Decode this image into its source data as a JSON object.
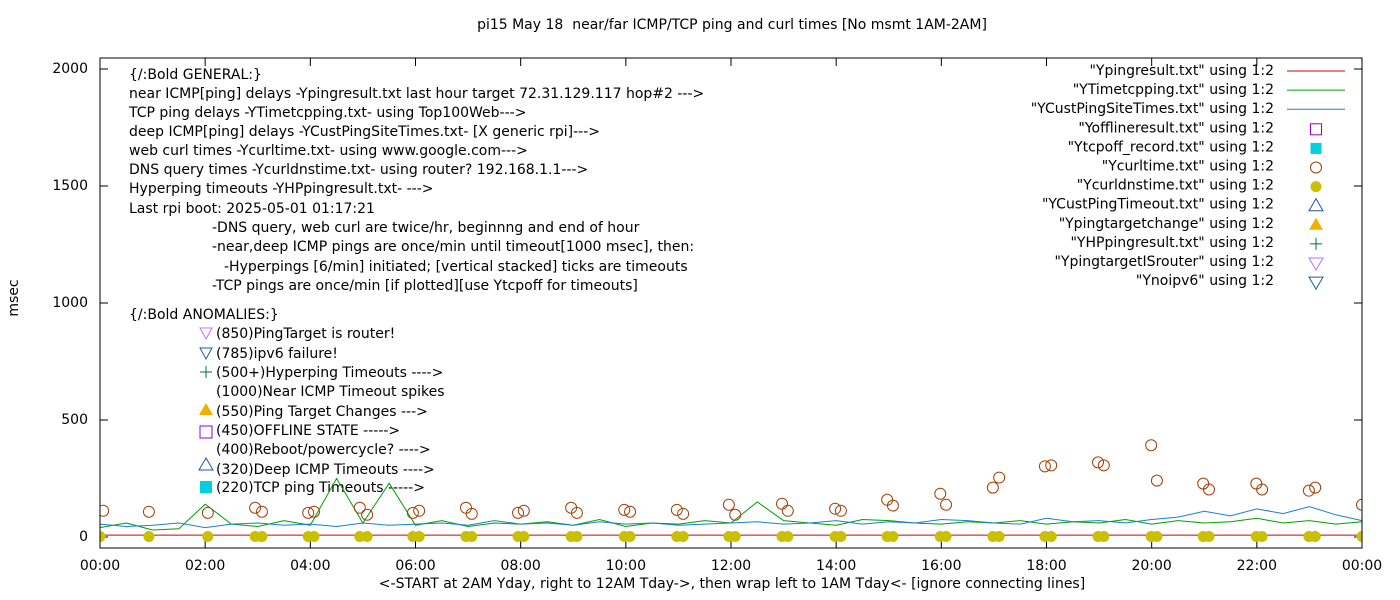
{
  "chart_data": {
    "type": "line",
    "title": "pi15 May 18  near/far ICMP/TCP ping and curl times [No msmt 1AM-2AM]",
    "y_label": "msec",
    "x_label": "<-START at 2AM Yday, right to 12AM Tday->, then wrap left to 1AM Tday<- [ignore connecting lines]",
    "xlim": [
      0,
      24
    ],
    "ylim": [
      -47,
      2047
    ],
    "xticks": [
      {
        "value": 0,
        "label": "00:00"
      },
      {
        "value": 2,
        "label": "02:00"
      },
      {
        "value": 4,
        "label": "04:00"
      },
      {
        "value": 6,
        "label": "06:00"
      },
      {
        "value": 8,
        "label": "08:00"
      },
      {
        "value": 10,
        "label": "10:00"
      },
      {
        "value": 12,
        "label": "12:00"
      },
      {
        "value": 14,
        "label": "14:00"
      },
      {
        "value": 16,
        "label": "16:00"
      },
      {
        "value": 18,
        "label": "18:00"
      },
      {
        "value": 20,
        "label": "20:00"
      },
      {
        "value": 22,
        "label": "22:00"
      },
      {
        "value": 24,
        "label": "00:00"
      }
    ],
    "yticks": [
      0,
      500,
      1000,
      1500,
      2000
    ],
    "grid": false,
    "legend_position": "top-right",
    "x": [
      0,
      0.5,
      1,
      1.5,
      2,
      2.5,
      3,
      3.5,
      4,
      4.5,
      5,
      5.5,
      6,
      6.5,
      7,
      7.5,
      8,
      8.5,
      9,
      9.5,
      10,
      10.5,
      11,
      11.5,
      12,
      12.5,
      13,
      13.5,
      14,
      14.5,
      15,
      15.5,
      16,
      16.5,
      17,
      17.5,
      18,
      18.5,
      19,
      19.5,
      20,
      20.5,
      21,
      21.5,
      22,
      22.5,
      23,
      23.5,
      24
    ],
    "series": [
      {
        "name": "\"Ypingresult.txt\" using 1:2",
        "color": "#d00000",
        "marker": "line",
        "values": [
          8,
          8,
          8,
          8,
          8,
          8,
          8,
          8,
          8,
          8,
          8,
          8,
          8,
          8,
          8,
          8,
          8,
          8,
          8,
          8,
          8,
          8,
          8,
          8,
          8,
          8,
          8,
          8,
          8,
          8,
          8,
          8,
          8,
          8,
          8,
          8,
          8,
          8,
          8,
          8,
          8,
          8,
          8,
          8,
          8,
          8,
          8,
          8,
          8
        ]
      },
      {
        "name": "\"YTimetcpping.txt\" using 1:2",
        "color": "#00a000",
        "marker": "line",
        "values": [
          40,
          60,
          30,
          35,
          140,
          55,
          45,
          70,
          50,
          250,
          60,
          230,
          50,
          70,
          45,
          60,
          55,
          65,
          50,
          75,
          45,
          60,
          55,
          70,
          60,
          150,
          70,
          60,
          50,
          75,
          70,
          60,
          55,
          65,
          60,
          70,
          55,
          65,
          60,
          75,
          55,
          70,
          60,
          65,
          80,
          60,
          70,
          55,
          65
        ]
      },
      {
        "name": "\"YCustPingSiteTimes.txt\" using 1:2",
        "color": "#1a7fd0",
        "marker": "line",
        "values": [
          55,
          45,
          50,
          60,
          40,
          55,
          60,
          50,
          55,
          45,
          60,
          50,
          55,
          60,
          50,
          70,
          55,
          60,
          50,
          65,
          55,
          60,
          50,
          55,
          60,
          65,
          55,
          60,
          70,
          55,
          65,
          60,
          75,
          70,
          60,
          55,
          80,
          65,
          70,
          60,
          75,
          85,
          110,
          90,
          120,
          100,
          130,
          95,
          70
        ]
      },
      {
        "name": "\"Yofflineresult.txt\" using 1:2",
        "color": "#9400d3",
        "marker": "open-square",
        "x": [],
        "values": []
      },
      {
        "name": "\"Ytcpoff_record.txt\" using 1:2",
        "color": "#00d0e0",
        "marker": "filled-square",
        "x": [],
        "values": []
      },
      {
        "name": "\"Ycurltime.txt\" using 1:2",
        "color": "#a0400a",
        "marker": "open-circle",
        "x": [
          0.06,
          0.93,
          2.05,
          2.95,
          3.08,
          3.96,
          4.07,
          4.94,
          5.08,
          5.95,
          6.07,
          6.96,
          7.07,
          7.95,
          8.06,
          8.96,
          9.07,
          9.97,
          10.08,
          10.97,
          11.09,
          11.96,
          12.08,
          12.97,
          13.08,
          13.98,
          14.09,
          14.97,
          15.08,
          15.98,
          16.09,
          16.98,
          17.1,
          17.97,
          18.09,
          18.98,
          19.09,
          19.99,
          20.1,
          20.98,
          21.09,
          21.99,
          22.1,
          22.99,
          23.11,
          24
        ],
        "values": [
          112,
          108,
          103,
          125,
          108,
          103,
          108,
          125,
          95,
          103,
          112,
          125,
          99,
          103,
          112,
          125,
          103,
          116,
          108,
          116,
          99,
          138,
          95,
          142,
          112,
          121,
          112,
          159,
          134,
          185,
          138,
          211,
          254,
          302,
          306,
          319,
          306,
          392,
          241,
          228,
          203,
          228,
          203,
          198,
          211,
          138
        ]
      },
      {
        "name": "\"Ycurldnstime.txt\" using 1:2",
        "color": "#c8c000",
        "marker": "filled-circle",
        "x": [
          0,
          0.93,
          2.05,
          2.95,
          3.08,
          3.96,
          4.07,
          4.94,
          5.08,
          5.95,
          6.07,
          6.96,
          7.07,
          7.95,
          8.06,
          8.96,
          9.07,
          9.97,
          10.08,
          10.97,
          11.09,
          11.96,
          12.08,
          12.97,
          13.08,
          13.98,
          14.09,
          14.97,
          15.08,
          15.98,
          16.09,
          16.98,
          17.1,
          17.97,
          18.09,
          18.98,
          19.09,
          19.99,
          20.1,
          20.98,
          21.09,
          21.99,
          22.1,
          22.99,
          23.11,
          24
        ],
        "values": [
          2,
          2,
          2,
          2,
          2,
          2,
          2,
          2,
          2,
          2,
          2,
          2,
          2,
          2,
          2,
          2,
          2,
          2,
          2,
          2,
          2,
          2,
          2,
          2,
          2,
          2,
          2,
          2,
          2,
          2,
          2,
          2,
          2,
          2,
          2,
          2,
          2,
          2,
          2,
          2,
          2,
          2,
          2,
          2,
          2,
          2
        ]
      },
      {
        "name": "\"YCustPingTimeout.txt\" using 1:2",
        "color": "#2050c0",
        "marker": "open-triangle",
        "x": [],
        "values": []
      },
      {
        "name": "\"Ypingtargetchange\" using 1:2",
        "color": "#f0b000",
        "marker": "filled-triangle",
        "x": [],
        "values": []
      },
      {
        "name": "\"YHPpingresult.txt\" using 1:2",
        "color": "#007040",
        "marker": "plus",
        "x": [],
        "values": []
      },
      {
        "name": "\"YpingtargetISrouter\" using 1:2",
        "color": "#c070ff",
        "marker": "open-down-triangle",
        "x": [],
        "values": []
      },
      {
        "name": "\"Ynoipv6\" using 1:2",
        "color": "#1a5fa0",
        "marker": "open-down-triangle",
        "x": [],
        "values": []
      }
    ],
    "annotations": [
      "{/:Bold GENERAL:}",
      "near ICMP[ping] delays -Ypingresult.txt last hour target 72.31.129.117 hop#2 --->",
      "TCP ping delays -YTimetcpping.txt- using Top100Web--->",
      "deep ICMP[ping] delays -YCustPingSiteTimes.txt- [X generic rpi]--->",
      "web curl times -Ycurltime.txt- using www.google.com--->",
      "DNS query times -Ycurldnstime.txt- using router? 192.168.1.1--->",
      "Hyperping timeouts -YHPpingresult.txt- --->",
      "Last rpi boot: 2025-05-01 01:17:21",
      "-DNS query, web curl are twice/hr, beginnng and end of hour",
      "-near,deep ICMP pings are once/min until timeout[1000 msec], then:",
      "-Hyperpings [6/min] initiated; [vertical stacked] ticks are timeouts",
      "-TCP pings are once/min [if plotted][use Ytcpoff for timeouts]",
      "{/:Bold ANOMALIES:}",
      "(850)PingTarget is router!",
      "(785)ipv6 failure!",
      "(500+)Hyperping Timeouts ---->",
      "(1000)Near ICMP Timeout spikes",
      "(550)Ping Target Changes --->",
      "(450)OFFLINE STATE ----->",
      "(400)Reboot/powercycle? ---->",
      "(320)Deep ICMP Timeouts ---->",
      "(220)TCP ping Timeouts ----->"
    ]
  }
}
